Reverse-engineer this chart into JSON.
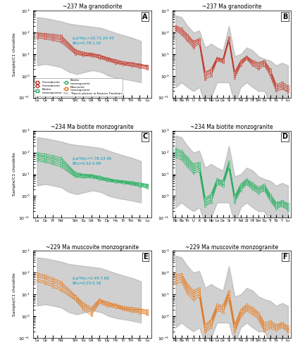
{
  "panel_A_title": "~237 Ma granodiorite",
  "panel_B_title": "~237 Ma granodiorite",
  "panel_C_title": "~234 Ma biotite monzogranite",
  "panel_D_title": "~234 Ma biotite monzogranite",
  "panel_E_title": "~229 Ma muscovite monzogranite",
  "panel_F_title": "~229 Ma muscovite monzogranite",
  "REE_x_labels": [
    "La",
    "Ce",
    "Pr",
    "Nd",
    "Sm",
    "Eu",
    "Gd",
    "Tb",
    "Dy",
    "Ho",
    "Er",
    "Tm",
    "Yb",
    "Lu"
  ],
  "MORB_elements": [
    "Rb",
    "Ba",
    "Th",
    "U",
    "K",
    "Ta",
    "Nb",
    "La",
    "Ce",
    "Sr",
    "P",
    "Nd",
    "Zr",
    "Hf",
    "Sm",
    "Eu",
    "Ti",
    "Yb",
    "Y",
    "Lu"
  ],
  "color_granodiorite": "#c0392b",
  "color_biotite": "#27ae60",
  "color_muscovite": "#e07820",
  "color_gray_fill": "#aaaaaa",
  "color_cyan_text": "#0099bb",
  "annotation_A": "(La/Yb)ₙ=10.71-24.45\nδEu=0.78-1.02",
  "annotation_C": "(La/Yb)ₙ=7.78-23.46\nδEu=0.52-0.89",
  "annotation_E": "(La/Yb)ₙ=2.49-7.68\nδEu=0.03-0.38",
  "granodiorite_REE": [
    [
      95,
      88,
      80,
      72,
      16,
      12,
      11,
      9,
      7,
      5.5,
      4.5,
      4.0,
      3.5,
      3.0
    ],
    [
      85,
      78,
      70,
      62,
      14,
      11,
      10,
      8.5,
      6.5,
      5.0,
      4.2,
      3.7,
      3.3,
      2.8
    ],
    [
      75,
      68,
      60,
      52,
      13,
      10,
      9.5,
      8.0,
      6.0,
      4.5,
      3.8,
      3.4,
      3.0,
      2.6
    ],
    [
      65,
      60,
      52,
      44,
      11,
      9,
      8.5,
      7.0,
      5.5,
      4.0,
      3.5,
      3.0,
      2.7,
      2.3
    ],
    [
      55,
      50,
      43,
      36,
      10,
      8.5,
      8.0,
      6.5,
      5.0,
      3.8,
      3.2,
      2.8,
      2.4,
      2.0
    ]
  ],
  "granodiorite_MORB": [
    [
      200,
      150,
      80,
      40,
      50,
      1.5,
      2,
      7,
      6,
      60,
      1.5,
      5,
      8,
      5,
      4,
      5,
      2,
      0.4,
      0.5,
      0.35
    ],
    [
      180,
      130,
      70,
      35,
      45,
      1.3,
      1.8,
      6.5,
      5.5,
      55,
      1.3,
      4.5,
      7.5,
      4.5,
      3.5,
      4.5,
      1.8,
      0.35,
      0.4,
      0.3
    ],
    [
      160,
      110,
      60,
      30,
      40,
      1.1,
      1.5,
      6,
      5,
      50,
      1.2,
      4,
      7,
      4,
      3,
      4,
      1.5,
      0.3,
      0.35,
      0.25
    ],
    [
      140,
      95,
      50,
      25,
      35,
      0.9,
      1.3,
      5.5,
      4.5,
      45,
      1.0,
      3.5,
      6.5,
      3.5,
      2.5,
      3.5,
      1.3,
      0.25,
      0.3,
      0.2
    ],
    [
      120,
      80,
      40,
      20,
      30,
      0.7,
      1.0,
      5,
      4,
      40,
      0.8,
      3,
      6,
      3,
      2.0,
      3,
      1.0,
      0.2,
      0.25,
      0.18
    ]
  ],
  "biotite_REE": [
    [
      95,
      85,
      70,
      58,
      12,
      10,
      9.5,
      8,
      6.5,
      5.5,
      5.0,
      4.5,
      4.0,
      3.5
    ],
    [
      80,
      70,
      58,
      47,
      11,
      9.5,
      9.0,
      7.5,
      6.0,
      5.2,
      4.7,
      4.2,
      3.8,
      3.2
    ],
    [
      70,
      62,
      50,
      40,
      10,
      9.0,
      8.5,
      7.0,
      5.8,
      5.0,
      4.5,
      4.0,
      3.5,
      3.0
    ],
    [
      60,
      52,
      42,
      33,
      9,
      8.5,
      8.0,
      6.5,
      5.5,
      4.8,
      4.2,
      3.7,
      3.3,
      2.8
    ],
    [
      50,
      43,
      35,
      27,
      8,
      7.5,
      7.5,
      6.0,
      5.0,
      4.5,
      4.0,
      3.5,
      3.0,
      2.5
    ],
    [
      42,
      36,
      29,
      22,
      7.5,
      7.0,
      7.0,
      5.8,
      4.8,
      4.2,
      3.8,
      3.3,
      2.8,
      2.3
    ]
  ],
  "biotite_MORB": [
    [
      150,
      120,
      60,
      30,
      35,
      0.8,
      1.2,
      6,
      5,
      40,
      1.0,
      3.5,
      6,
      4,
      2.5,
      3.5,
      1.2,
      0.5,
      0.6,
      0.45
    ],
    [
      130,
      100,
      50,
      25,
      30,
      0.7,
      1.0,
      5.5,
      4.5,
      35,
      0.9,
      3.0,
      5.5,
      3.5,
      2.2,
      3.0,
      1.0,
      0.45,
      0.55,
      0.4
    ],
    [
      110,
      85,
      42,
      21,
      25,
      0.6,
      0.9,
      5,
      4,
      30,
      0.8,
      2.7,
      5,
      3.0,
      2.0,
      2.7,
      0.9,
      0.4,
      0.5,
      0.35
    ],
    [
      90,
      70,
      35,
      17,
      22,
      0.5,
      0.7,
      4.5,
      3.5,
      27,
      0.7,
      2.4,
      4.5,
      2.7,
      1.8,
      2.4,
      0.8,
      0.35,
      0.45,
      0.3
    ],
    [
      75,
      58,
      28,
      14,
      18,
      0.4,
      0.6,
      4,
      3.2,
      24,
      0.6,
      2.1,
      4,
      2.4,
      1.5,
      2.1,
      0.7,
      0.3,
      0.4,
      0.25
    ],
    [
      60,
      46,
      22,
      11,
      14,
      0.35,
      0.5,
      3.5,
      2.8,
      20,
      0.5,
      1.8,
      3.5,
      2.0,
      1.3,
      1.8,
      0.6,
      0.26,
      0.35,
      0.22
    ]
  ],
  "muscovite_REE": [
    [
      95,
      75,
      55,
      38,
      9,
      4,
      2.5,
      6,
      4.5,
      3.5,
      2.8,
      2.5,
      2.2,
      1.9
    ],
    [
      80,
      63,
      45,
      31,
      8,
      3.5,
      2.0,
      5.5,
      4.0,
      3.2,
      2.5,
      2.2,
      2.0,
      1.7
    ],
    [
      65,
      52,
      36,
      25,
      7,
      3.0,
      1.8,
      5.0,
      3.6,
      3.0,
      2.3,
      2.0,
      1.8,
      1.5
    ],
    [
      50,
      40,
      28,
      19,
      6,
      2.5,
      1.4,
      4.5,
      3.2,
      2.8,
      2.1,
      1.8,
      1.6,
      1.3
    ],
    [
      40,
      32,
      22,
      15,
      5.5,
      2.0,
      1.1,
      4.0,
      2.8,
      2.5,
      1.9,
      1.6,
      1.4,
      1.2
    ]
  ],
  "muscovite_MORB": [
    [
      80,
      90,
      30,
      15,
      20,
      0.4,
      0.7,
      3.5,
      3,
      15,
      0.4,
      2,
      3.5,
      2.5,
      1.5,
      0.5,
      0.6,
      0.4,
      0.5,
      0.35
    ],
    [
      65,
      75,
      24,
      12,
      16,
      0.35,
      0.6,
      3.0,
      2.6,
      12,
      0.35,
      1.7,
      3.0,
      2.1,
      1.3,
      0.4,
      0.5,
      0.35,
      0.45,
      0.3
    ],
    [
      52,
      62,
      19,
      9.5,
      13,
      0.28,
      0.5,
      2.6,
      2.2,
      10,
      0.28,
      1.4,
      2.6,
      1.8,
      1.1,
      0.32,
      0.42,
      0.3,
      0.4,
      0.25
    ],
    [
      40,
      50,
      15,
      7.5,
      10,
      0.22,
      0.4,
      2.2,
      1.9,
      8,
      0.22,
      1.1,
      2.2,
      1.5,
      0.9,
      0.25,
      0.35,
      0.26,
      0.35,
      0.22
    ],
    [
      30,
      38,
      11,
      5.5,
      8,
      0.18,
      0.3,
      1.8,
      1.5,
      6,
      0.18,
      0.9,
      1.8,
      1.2,
      0.7,
      0.2,
      0.28,
      0.22,
      0.3,
      0.18
    ]
  ],
  "background_REE_upper": [
    500,
    450,
    380,
    320,
    250,
    220,
    200,
    180,
    160,
    120,
    90,
    70,
    55,
    40
  ],
  "background_REE_lower": [
    3,
    3.5,
    3,
    2.5,
    1.5,
    1.2,
    1.5,
    1.8,
    1.5,
    1.0,
    0.8,
    0.7,
    0.6,
    0.5
  ],
  "background_MORB_upper": [
    600,
    500,
    200,
    100,
    120,
    20,
    30,
    20,
    15,
    200,
    8,
    10,
    20,
    15,
    8,
    6,
    5,
    3,
    4,
    3
  ],
  "background_MORB_lower": [
    0.3,
    0.5,
    0.3,
    0.2,
    0.3,
    0.05,
    0.1,
    0.5,
    0.5,
    0.5,
    0.05,
    0.3,
    0.5,
    0.3,
    0.2,
    0.2,
    0.05,
    0.05,
    0.05,
    0.05
  ]
}
